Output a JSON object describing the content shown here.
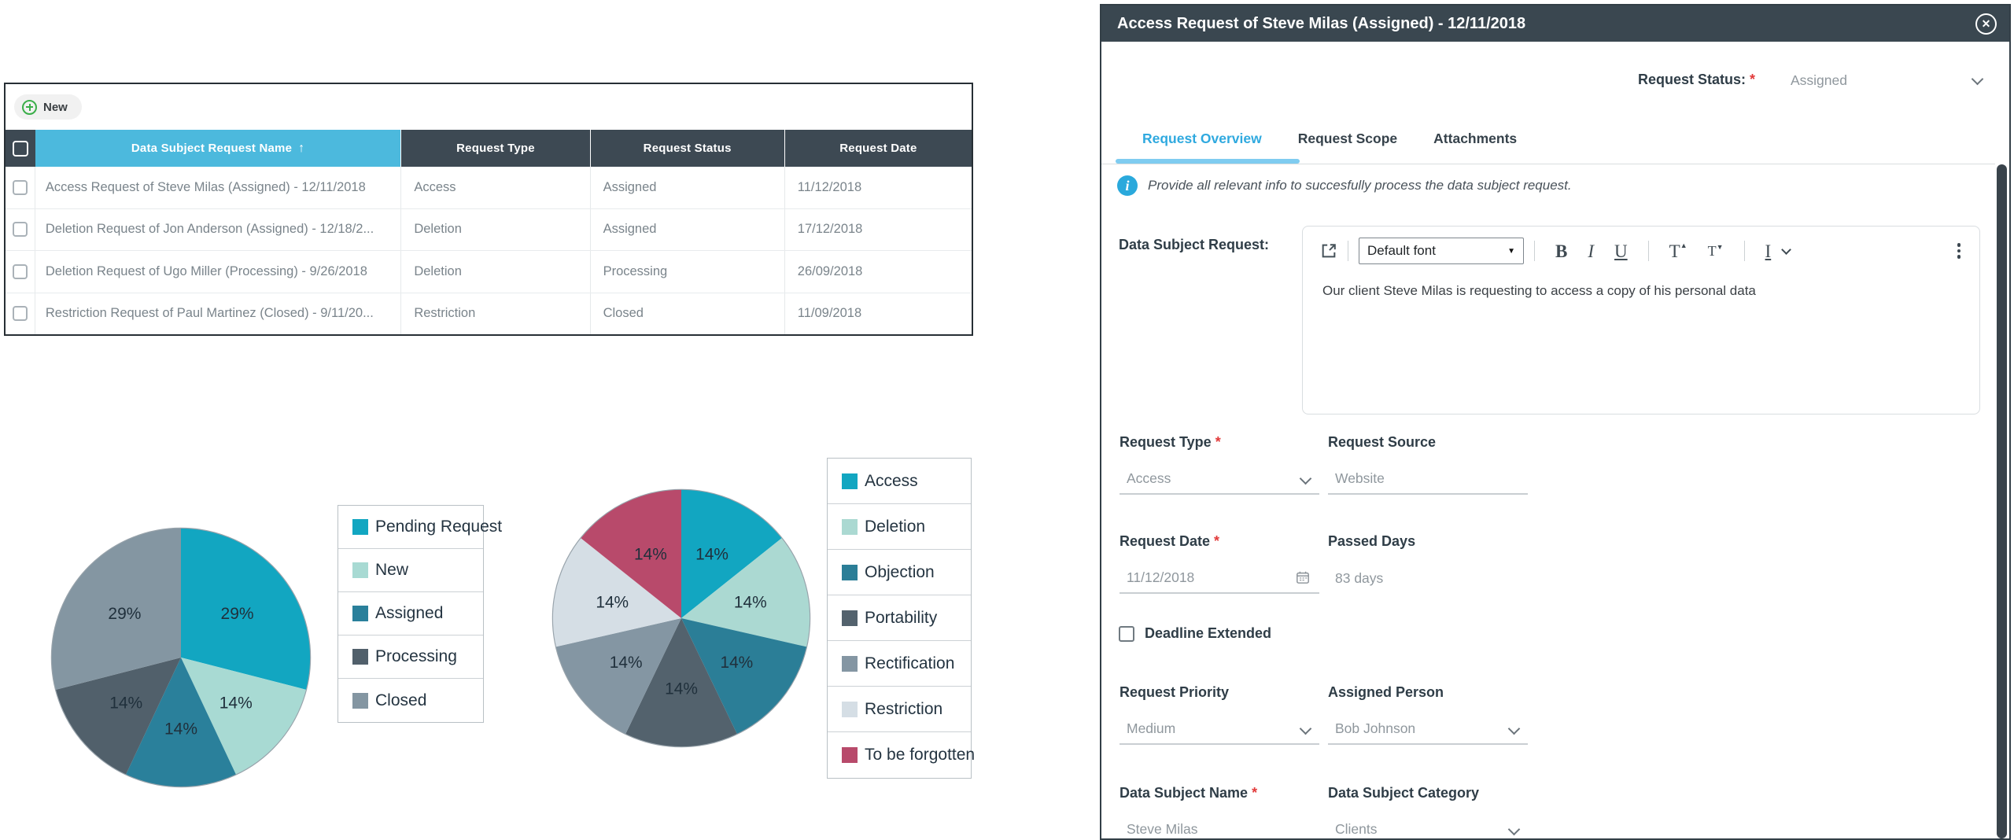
{
  "table": {
    "new_button_label": "New",
    "sort_icon": "↑",
    "columns": [
      "Data Subject Request Name",
      "Request Type",
      "Request Status",
      "Request Date"
    ],
    "rows": [
      {
        "name": "Access Request of Steve Milas (Assigned) - 12/11/2018",
        "type": "Access",
        "status": "Assigned",
        "date": "11/12/2018"
      },
      {
        "name": "Deletion Request of Jon Anderson (Assigned) - 12/18/2...",
        "type": "Deletion",
        "status": "Assigned",
        "date": "17/12/2018"
      },
      {
        "name": "Deletion Request of Ugo Miller (Processing) - 9/26/2018",
        "type": "Deletion",
        "status": "Processing",
        "date": "26/09/2018"
      },
      {
        "name": "Restriction Request of Paul Martinez (Closed) - 9/11/20...",
        "type": "Restriction",
        "status": "Closed",
        "date": "11/09/2018"
      }
    ]
  },
  "chart_data": [
    {
      "type": "pie",
      "title": "",
      "categories": [
        "Pending Request",
        "New",
        "Assigned",
        "Processing",
        "Closed"
      ],
      "values": [
        29,
        14,
        14,
        14,
        29
      ],
      "labels": [
        "29%",
        "14%",
        "14%",
        "14%",
        "29%"
      ],
      "colors": [
        "#12a6c1",
        "#a8dad3",
        "#2a809b",
        "#51606b",
        "#8496a2"
      ],
      "legend_position": "right",
      "start_angle_deg": 0,
      "direction": "clockwise"
    },
    {
      "type": "pie",
      "title": "",
      "categories": [
        "Access",
        "Deletion",
        "Objection",
        "Portability",
        "Rectification",
        "Restriction",
        "To be forgotten"
      ],
      "values": [
        14,
        14,
        14,
        14,
        14,
        14,
        14
      ],
      "labels": [
        "14%",
        "14%",
        "14%",
        "14%",
        "14%",
        "14%",
        "14%"
      ],
      "colors": [
        "#12a6c1",
        "#abd9d2",
        "#2b7e97",
        "#53626d",
        "#8496a3",
        "#d5dee5",
        "#b84a6b"
      ],
      "legend_position": "right",
      "start_angle_deg": 0,
      "direction": "clockwise"
    }
  ],
  "modal": {
    "title": "Access Request of Steve Milas (Assigned) - 12/11/2018",
    "close_glyph": "✕",
    "request_status": {
      "label": "Request Status:",
      "required_marker": "*",
      "value": "Assigned"
    },
    "tabs": [
      {
        "label": "Request Overview"
      },
      {
        "label": "Request Scope"
      },
      {
        "label": "Attachments"
      }
    ],
    "info_text": "Provide all relevant info to succesfully process the data subject request.",
    "editor": {
      "label": "Data Subject Request:",
      "font_select_value": "Default font",
      "content": "Our client Steve Milas is requesting to access a copy of his personal data",
      "toolbar": {
        "bold": "B",
        "italic": "I",
        "underline": "U",
        "superscript": "T",
        "subscript": "T",
        "text_style": "I"
      }
    },
    "fields": [
      {
        "label": "Request Type",
        "required_marker": "*",
        "value": "Access"
      },
      {
        "label": "Request Source",
        "required_marker": "",
        "value": "Website"
      },
      {
        "label": "Request Date",
        "required_marker": "*",
        "value": "11/12/2018"
      },
      {
        "label": "Passed Days",
        "required_marker": "",
        "value": "83 days"
      },
      {
        "label": "Request Priority",
        "required_marker": "",
        "value": "Medium"
      },
      {
        "label": "Assigned Person",
        "required_marker": "",
        "value": "Bob Johnson"
      },
      {
        "label": "Data Subject Name",
        "required_marker": "*",
        "value": "Steve Milas"
      },
      {
        "label": "Data Subject Category",
        "required_marker": "",
        "value": "Clients"
      }
    ],
    "deadline_checkbox": {
      "label": "Deadline Extended",
      "checked": false
    }
  },
  "colors": {
    "accent_blue_header": "#4cb9dd",
    "dark_header": "#3d4953",
    "titlebar": "#3a4750",
    "tab_active": "#2fa9df",
    "info_icon": "#2aa9dc",
    "required_red": "#e23b3b",
    "new_icon_green": "#3aae49",
    "scroll_thumb": "#39434b"
  }
}
